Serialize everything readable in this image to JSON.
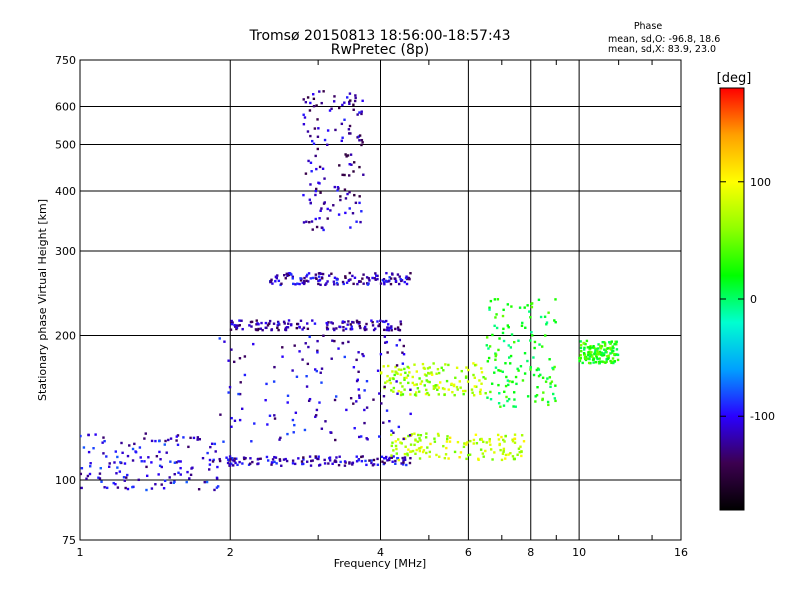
{
  "chart_data": {
    "type": "scatter",
    "title": "Tromsø 20150813 18:56:00-18:57:43",
    "subtitle": "RwPretec (8p)",
    "xlabel": "Frequency [MHz]",
    "ylabel": "Stationary phase Virtual Height [km]",
    "x_scale": "log",
    "y_scale": "log",
    "xlim": [
      1,
      16
    ],
    "ylim": [
      75,
      750
    ],
    "x_ticks": [
      "1",
      "2",
      "4",
      "6",
      "8",
      "10",
      "16"
    ],
    "y_ticks": [
      "75",
      "100",
      "200",
      "300",
      "400",
      "500",
      "600",
      "750"
    ],
    "grid": true,
    "stats": {
      "heading": "Phase",
      "line_o": "mean, sd,O: -96.8, 18.6",
      "line_x": "mean, sd,X:  83.9, 23.0"
    },
    "colorbar": {
      "label": "[deg]",
      "range": [
        -180,
        180
      ],
      "ticks": [
        "100",
        "0",
        "-100"
      ],
      "tick_values": [
        100,
        0,
        -100
      ],
      "colors": [
        "#000000",
        "#3c0050",
        "#2a00ff",
        "#00a0ff",
        "#00ffd0",
        "#00ff00",
        "#90ff00",
        "#ffff00",
        "#ffa000",
        "#ff0000"
      ]
    },
    "traces": [
      {
        "name": "",
        "fmin": 1.0,
        "fmax": 1.9,
        "hmin": 95,
        "hmax": 125,
        "phase": -105
      },
      {
        "name": "",
        "fmin": 1.9,
        "fmax": 4.6,
        "hmin": 107,
        "hmax": 112,
        "phase": -115
      },
      {
        "name": "",
        "fmin": 4.2,
        "fmax": 7.8,
        "hmin": 110,
        "hmax": 125,
        "phase": 80
      },
      {
        "name": "",
        "fmin": 4.0,
        "fmax": 6.5,
        "hmin": 150,
        "hmax": 175,
        "phase": 70
      },
      {
        "name": "",
        "fmin": 1.9,
        "fmax": 4.6,
        "hmin": 120,
        "hmax": 200,
        "phase": -110
      },
      {
        "name": "",
        "fmin": 2.0,
        "fmax": 4.4,
        "hmin": 205,
        "hmax": 215,
        "phase": -120
      },
      {
        "name": "",
        "fmin": 2.4,
        "fmax": 4.6,
        "hmin": 255,
        "hmax": 270,
        "phase": -115
      },
      {
        "name": "",
        "fmin": 2.8,
        "fmax": 3.7,
        "hmin": 330,
        "hmax": 650,
        "phase": -120
      },
      {
        "name": "",
        "fmin": 6.5,
        "fmax": 9.0,
        "hmin": 140,
        "hmax": 240,
        "phase": 20
      },
      {
        "name": "",
        "fmin": 10.0,
        "fmax": 12.0,
        "hmin": 175,
        "hmax": 195,
        "phase": 30
      }
    ]
  }
}
